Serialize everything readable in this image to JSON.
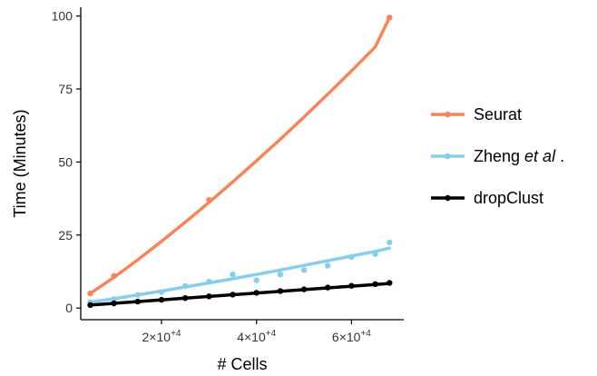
{
  "chart_data": {
    "type": "line",
    "xlabel": "# Cells",
    "ylabel": "Time (Minutes)",
    "xlim": [
      3000,
      71000
    ],
    "ylim": [
      -4,
      103
    ],
    "x_ticks": [
      {
        "value": 20000,
        "mantissa": "2",
        "exponent": "+4"
      },
      {
        "value": 40000,
        "mantissa": "4",
        "exponent": "+4"
      },
      {
        "value": 60000,
        "mantissa": "6",
        "exponent": "+4"
      }
    ],
    "x_tick_times": "×10",
    "y_ticks": [
      {
        "value": 0,
        "label": "0"
      },
      {
        "value": 25,
        "label": "25"
      },
      {
        "value": 50,
        "label": "50"
      },
      {
        "value": 75,
        "label": "75"
      },
      {
        "value": 100,
        "label": "100"
      }
    ],
    "grid": false,
    "legend_position": "right",
    "series": [
      {
        "name": "Seurat",
        "color": "#F8845A",
        "points": [
          [
            5000,
            5
          ],
          [
            10000,
            11
          ],
          [
            30000,
            37
          ],
          [
            68000,
            99.5
          ]
        ],
        "fit": [
          [
            5000,
            5
          ],
          [
            10000,
            10.5
          ],
          [
            15000,
            16.5
          ],
          [
            20000,
            22.8
          ],
          [
            25000,
            29.4
          ],
          [
            30000,
            36.2
          ],
          [
            35000,
            43.2
          ],
          [
            40000,
            50.4
          ],
          [
            45000,
            57.8
          ],
          [
            50000,
            65.4
          ],
          [
            55000,
            73.2
          ],
          [
            60000,
            81.2
          ],
          [
            65000,
            89.4
          ],
          [
            68000,
            99.5
          ]
        ]
      },
      {
        "name": "Zheng",
        "name_italic": "et al",
        "name_suffix": ".",
        "color": "#87CEEB",
        "points": [
          [
            5000,
            2
          ],
          [
            10000,
            3
          ],
          [
            15000,
            4.5
          ],
          [
            20000,
            5.5
          ],
          [
            25000,
            7.5
          ],
          [
            30000,
            9
          ],
          [
            35000,
            11.5
          ],
          [
            40000,
            9.5
          ],
          [
            45000,
            11.5
          ],
          [
            50000,
            13
          ],
          [
            55000,
            14.5
          ],
          [
            60000,
            17.5
          ],
          [
            65000,
            18.5
          ],
          [
            68000,
            22.5
          ]
        ],
        "fit": [
          [
            5000,
            2
          ],
          [
            10000,
            3.2
          ],
          [
            15000,
            4.5
          ],
          [
            20000,
            5.8
          ],
          [
            25000,
            7.2
          ],
          [
            30000,
            8.6
          ],
          [
            35000,
            10
          ],
          [
            40000,
            11.5
          ],
          [
            45000,
            13
          ],
          [
            50000,
            14.6
          ],
          [
            55000,
            16.2
          ],
          [
            60000,
            17.8
          ],
          [
            65000,
            19.4
          ],
          [
            68000,
            20.5
          ]
        ]
      },
      {
        "name": "dropClust",
        "color": "#000000",
        "points": [
          [
            5000,
            1
          ],
          [
            10000,
            1.6
          ],
          [
            15000,
            2.2
          ],
          [
            20000,
            2.8
          ],
          [
            25000,
            3.4
          ],
          [
            30000,
            4
          ],
          [
            35000,
            4.6
          ],
          [
            40000,
            5.2
          ],
          [
            45000,
            5.8
          ],
          [
            50000,
            6.4
          ],
          [
            55000,
            7
          ],
          [
            60000,
            7.6
          ],
          [
            65000,
            8.2
          ],
          [
            68000,
            8.6
          ]
        ],
        "fit": [
          [
            5000,
            1
          ],
          [
            68000,
            8.4
          ]
        ]
      }
    ]
  }
}
